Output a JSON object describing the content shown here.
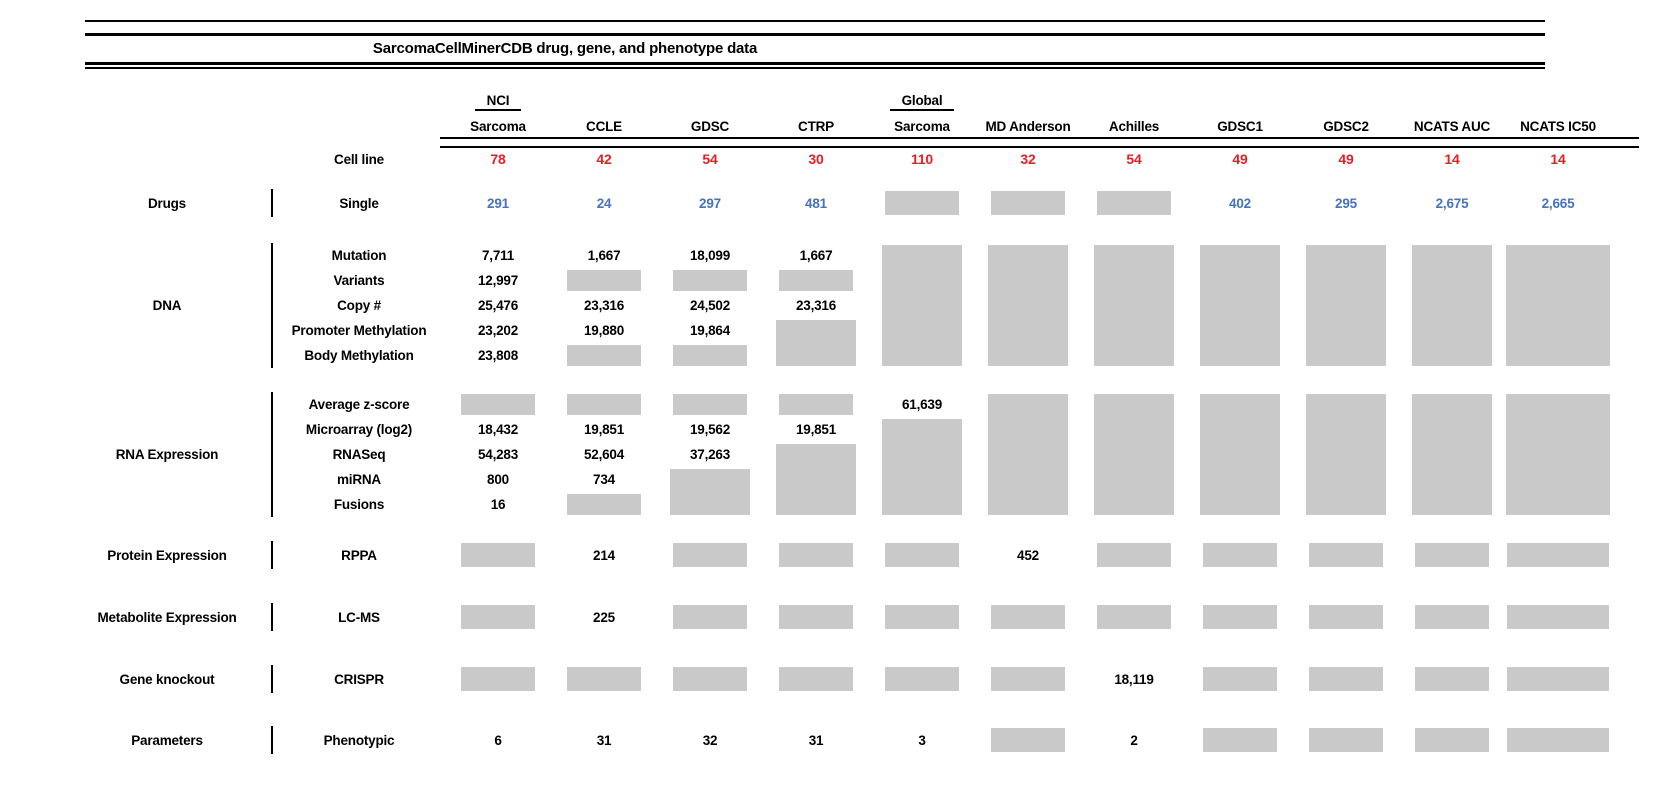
{
  "title": "SarcomaCellMinerCDB drug, gene, and phenotype data",
  "cell_line_label": "Cell line",
  "colors": {
    "red": "#ed1c24",
    "blue": "#4472c4",
    "empty_box": "#c9c9c9"
  },
  "columns": [
    {
      "group": "NCI",
      "label": "Sarcoma",
      "cell_lines": "78"
    },
    {
      "group": "",
      "label": "CCLE",
      "cell_lines": "42"
    },
    {
      "group": "",
      "label": "GDSC",
      "cell_lines": "54"
    },
    {
      "group": "",
      "label": "CTRP",
      "cell_lines": "30"
    },
    {
      "group": "Global",
      "label": "Sarcoma",
      "cell_lines": "110"
    },
    {
      "group": "",
      "label": "MD Anderson",
      "cell_lines": "32"
    },
    {
      "group": "",
      "label": "Achilles",
      "cell_lines": "54"
    },
    {
      "group": "",
      "label": "GDSC1",
      "cell_lines": "49"
    },
    {
      "group": "",
      "label": "GDSC2",
      "cell_lines": "49"
    },
    {
      "group": "",
      "label": "NCATS AUC",
      "cell_lines": "14"
    },
    {
      "group": "",
      "label": "NCATS IC50",
      "cell_lines": "14"
    }
  ],
  "sections": [
    {
      "category": "Drugs",
      "rows": [
        {
          "label": "Single",
          "style": "blue",
          "values": [
            "291",
            "24",
            "297",
            "481",
            null,
            null,
            null,
            "402",
            "295",
            "2,675",
            "2,665"
          ]
        }
      ]
    },
    {
      "category": "DNA",
      "rows": [
        {
          "label": "Mutation",
          "values": [
            "7,711",
            "1,667",
            "18,099",
            "1,667",
            null,
            null,
            null,
            null,
            null,
            null,
            null
          ]
        },
        {
          "label": "Variants",
          "values": [
            "12,997",
            null,
            null,
            null,
            null,
            null,
            null,
            null,
            null,
            null,
            null
          ]
        },
        {
          "label": "Copy #",
          "values": [
            "25,476",
            "23,316",
            "24,502",
            "23,316",
            null,
            null,
            null,
            null,
            null,
            null,
            null
          ]
        },
        {
          "label": "Promoter Methylation",
          "values": [
            "23,202",
            "19,880",
            "19,864",
            null,
            null,
            null,
            null,
            null,
            null,
            null,
            null
          ]
        },
        {
          "label": "Body Methylation",
          "values": [
            "23,808",
            null,
            null,
            null,
            null,
            null,
            null,
            null,
            null,
            null,
            null
          ]
        }
      ]
    },
    {
      "category": "RNA Expression",
      "rows": [
        {
          "label": "Average z-score",
          "values": [
            null,
            null,
            null,
            null,
            "61,639",
            null,
            null,
            null,
            null,
            null,
            null
          ]
        },
        {
          "label": "Microarray (log2)",
          "values": [
            "18,432",
            "19,851",
            "19,562",
            "19,851",
            null,
            null,
            null,
            null,
            null,
            null,
            null
          ]
        },
        {
          "label": "RNASeq",
          "values": [
            "54,283",
            "52,604",
            "37,263",
            null,
            null,
            null,
            null,
            null,
            null,
            null,
            null
          ]
        },
        {
          "label": "miRNA",
          "values": [
            "800",
            "734",
            null,
            null,
            null,
            null,
            null,
            null,
            null,
            null,
            null
          ]
        },
        {
          "label": "Fusions",
          "values": [
            "16",
            null,
            null,
            null,
            null,
            null,
            null,
            null,
            null,
            null,
            null
          ]
        }
      ]
    },
    {
      "category": "Protein Expression",
      "rows": [
        {
          "label": "RPPA",
          "values": [
            null,
            "214",
            null,
            null,
            null,
            "452",
            null,
            null,
            null,
            null,
            null
          ]
        }
      ]
    },
    {
      "category": "Metabolite Expression",
      "rows": [
        {
          "label": "LC-MS",
          "values": [
            null,
            "225",
            null,
            null,
            null,
            null,
            null,
            null,
            null,
            null,
            null
          ]
        }
      ]
    },
    {
      "category": "Gene knockout",
      "rows": [
        {
          "label": "CRISPR",
          "values": [
            null,
            null,
            null,
            null,
            null,
            null,
            "18,119",
            null,
            null,
            null,
            null
          ]
        }
      ]
    },
    {
      "category": "Parameters",
      "rows": [
        {
          "label": "Phenotypic",
          "values": [
            "6",
            "31",
            "32",
            "31",
            "3",
            null,
            "2",
            null,
            null,
            null,
            null
          ]
        }
      ]
    }
  ]
}
